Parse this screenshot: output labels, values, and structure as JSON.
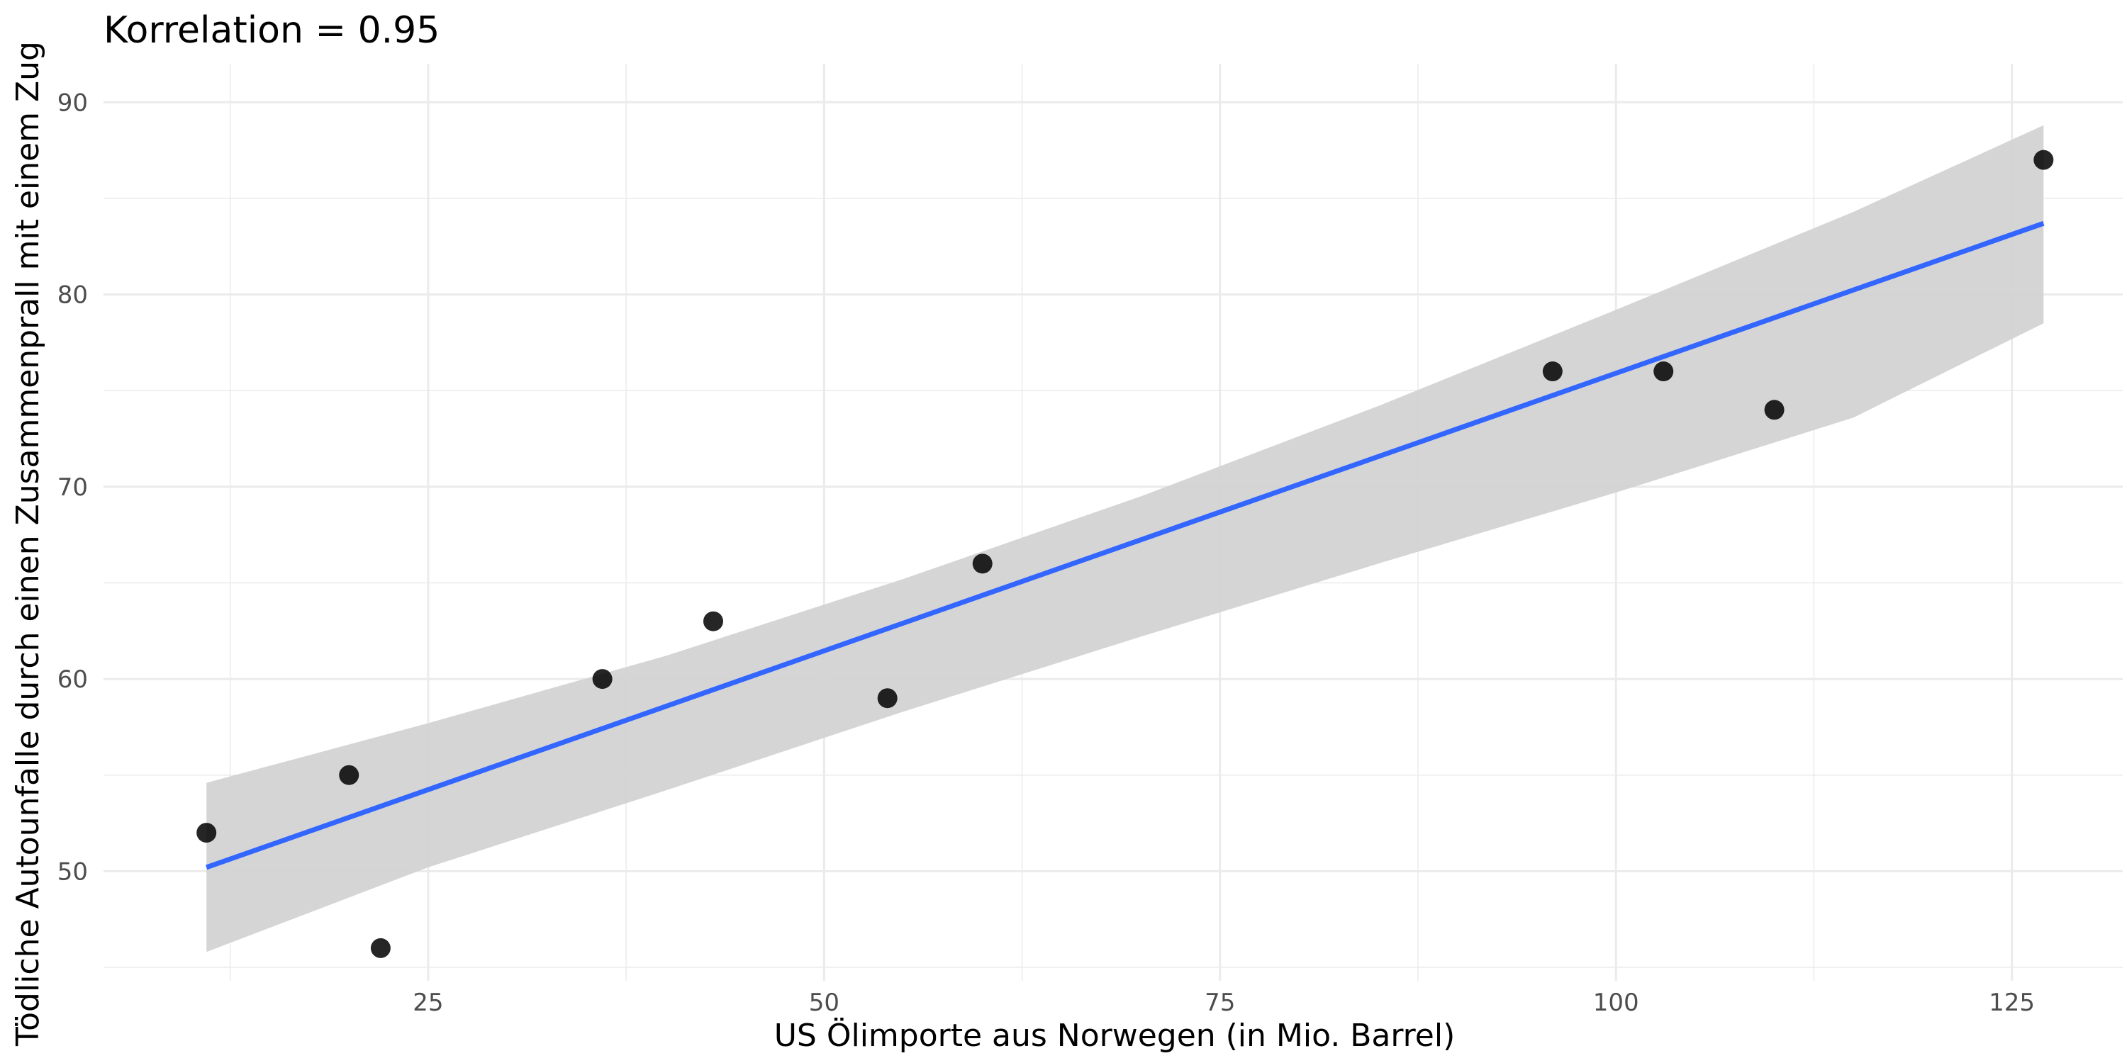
{
  "chart_data": {
    "type": "scatter",
    "title": "Korrelation = 0.95",
    "xlabel": "US Ölimporte aus Norwegen (in Mio. Barrel)",
    "ylabel": "Tödliche Autounfalle durch einen Zusammenprall mit einem Zug",
    "xlim": [
      4.5,
      132
    ],
    "ylim": [
      44.3,
      92
    ],
    "x_ticks": [
      25,
      50,
      75,
      100,
      125
    ],
    "y_ticks": [
      50,
      60,
      70,
      80,
      90
    ],
    "grid": true,
    "points": [
      {
        "x": 11,
        "y": 52
      },
      {
        "x": 20,
        "y": 55
      },
      {
        "x": 22,
        "y": 46
      },
      {
        "x": 36,
        "y": 60
      },
      {
        "x": 43,
        "y": 63
      },
      {
        "x": 54,
        "y": 59
      },
      {
        "x": 60,
        "y": 66
      },
      {
        "x": 96,
        "y": 76
      },
      {
        "x": 103,
        "y": 76
      },
      {
        "x": 110,
        "y": 74
      },
      {
        "x": 127,
        "y": 87
      }
    ],
    "fit_line": {
      "x": [
        11,
        127
      ],
      "y": [
        50.2,
        83.7
      ]
    },
    "confidence_band": {
      "x": [
        11,
        25,
        40,
        55,
        70,
        85,
        100,
        115,
        127
      ],
      "upper": [
        54.6,
        57.7,
        61.2,
        65.2,
        69.5,
        74.2,
        79.2,
        84.3,
        88.8
      ],
      "lower": [
        45.8,
        50.2,
        54.2,
        58.3,
        62.2,
        66.0,
        69.7,
        73.6,
        78.5
      ]
    },
    "colors": {
      "point": "#000000",
      "line": "#3366ff",
      "band": "#d3d3d3",
      "grid": "#ebebeb"
    }
  }
}
